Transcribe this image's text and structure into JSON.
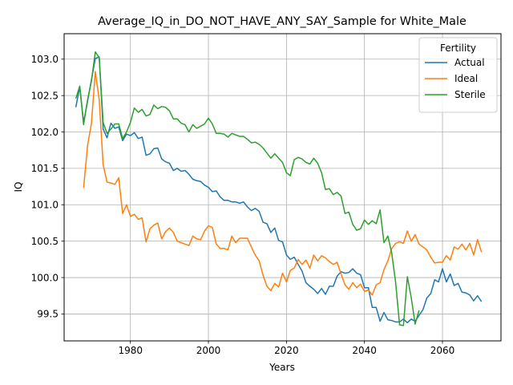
{
  "chart_data": {
    "type": "line",
    "title": "Average_IQ_in_DO_NOT_HAVE_ANY_SAY_Sample for White_Male",
    "xlabel": "Years",
    "ylabel": "IQ",
    "xlim": [
      1963,
      2075
    ],
    "ylim": [
      99.13,
      103.35
    ],
    "xticks": [
      1980,
      2000,
      2020,
      2040,
      2060
    ],
    "xtick_labels": [
      "1980",
      "2000",
      "2020",
      "2040",
      "2060"
    ],
    "yticks": [
      99.5,
      100.0,
      100.5,
      101.0,
      101.5,
      102.0,
      102.5,
      103.0
    ],
    "ytick_labels": [
      "99.5",
      "100.0",
      "100.5",
      "101.0",
      "101.5",
      "102.0",
      "102.5",
      "103.0"
    ],
    "grid": true,
    "legend": {
      "title": "Fertility",
      "placement": "top-right"
    },
    "series": [
      {
        "name": "Actual",
        "color": "#1f77b4",
        "x": [
          1966,
          1967,
          1968,
          1969,
          1970,
          1971,
          1972,
          1973,
          1974,
          1975,
          1976,
          1977,
          1978,
          1979,
          1980,
          1981,
          1982,
          1983,
          1984,
          1985,
          1986,
          1987,
          1988,
          1989,
          1990,
          1991,
          1992,
          1993,
          1994,
          1995,
          1996,
          1997,
          1998,
          1999,
          2000,
          2001,
          2002,
          2003,
          2004,
          2005,
          2006,
          2007,
          2008,
          2009,
          2010,
          2011,
          2012,
          2013,
          2014,
          2015,
          2016,
          2017,
          2018,
          2019,
          2020,
          2021,
          2022,
          2023,
          2024,
          2025,
          2026,
          2027,
          2028,
          2029,
          2030,
          2031,
          2032,
          2033,
          2034,
          2035,
          2036,
          2037,
          2038,
          2039,
          2040,
          2041,
          2042,
          2043,
          2044,
          2045,
          2046,
          2047,
          2048,
          2049,
          2050,
          2051,
          2052,
          2053,
          2054,
          2055,
          2056,
          2057,
          2058,
          2059,
          2060,
          2061,
          2062,
          2063,
          2064,
          2065,
          2066,
          2067,
          2068,
          2069,
          2070
        ],
        "y": [
          102.34,
          102.62,
          102.13,
          102.42,
          102.72,
          103.01,
          103.03,
          102.04,
          101.92,
          102.12,
          102.05,
          102.07,
          101.88,
          101.97,
          101.95,
          101.99,
          101.91,
          101.93,
          101.68,
          101.7,
          101.77,
          101.78,
          101.63,
          101.59,
          101.57,
          101.47,
          101.5,
          101.46,
          101.47,
          101.42,
          101.35,
          101.33,
          101.32,
          101.27,
          101.24,
          101.18,
          101.19,
          101.11,
          101.06,
          101.06,
          101.04,
          101.04,
          101.02,
          101.04,
          100.97,
          100.92,
          100.95,
          100.91,
          100.76,
          100.74,
          100.62,
          100.68,
          100.51,
          100.49,
          100.31,
          100.25,
          100.28,
          100.18,
          100.09,
          99.93,
          99.88,
          99.84,
          99.78,
          99.85,
          99.77,
          99.88,
          99.88,
          100.02,
          100.08,
          100.06,
          100.07,
          100.12,
          100.06,
          100.04,
          99.86,
          99.86,
          99.59,
          99.59,
          99.4,
          99.52,
          99.42,
          99.41,
          99.39,
          99.39,
          99.43,
          99.38,
          99.43,
          99.4,
          99.48,
          99.56,
          99.72,
          99.78,
          99.97,
          99.94,
          100.12,
          99.94,
          100.05,
          99.89,
          99.92,
          99.8,
          99.79,
          99.76,
          99.68,
          99.75,
          99.67
        ]
      },
      {
        "name": "Ideal",
        "color": "#ff7f0e",
        "x": [
          1968,
          1969,
          1970,
          1971,
          1972,
          1973,
          1974,
          1975,
          1976,
          1977,
          1978,
          1979,
          1980,
          1981,
          1982,
          1983,
          1984,
          1985,
          1986,
          1987,
          1988,
          1989,
          1990,
          1991,
          1992,
          1993,
          1994,
          1995,
          1996,
          1997,
          1998,
          1999,
          2000,
          2001,
          2002,
          2003,
          2004,
          2005,
          2006,
          2007,
          2008,
          2009,
          2010,
          2011,
          2012,
          2013,
          2014,
          2015,
          2016,
          2017,
          2018,
          2019,
          2020,
          2021,
          2022,
          2023,
          2024,
          2025,
          2026,
          2027,
          2028,
          2029,
          2030,
          2031,
          2032,
          2033,
          2034,
          2035,
          2036,
          2037,
          2038,
          2039,
          2040,
          2041,
          2042,
          2043,
          2044,
          2045,
          2046,
          2047,
          2048,
          2049,
          2050,
          2051,
          2052,
          2053,
          2054,
          2055,
          2056,
          2057,
          2058,
          2059,
          2060,
          2061,
          2062,
          2063,
          2064,
          2065,
          2066,
          2067,
          2068,
          2069,
          2070
        ],
        "y": [
          101.23,
          101.81,
          102.12,
          102.83,
          102.44,
          101.55,
          101.31,
          101.3,
          101.28,
          101.37,
          100.88,
          101.0,
          100.84,
          100.87,
          100.8,
          100.82,
          100.49,
          100.67,
          100.72,
          100.75,
          100.53,
          100.63,
          100.68,
          100.62,
          100.5,
          100.48,
          100.46,
          100.44,
          100.57,
          100.53,
          100.52,
          100.64,
          100.71,
          100.69,
          100.46,
          100.4,
          100.4,
          100.38,
          100.57,
          100.48,
          100.54,
          100.54,
          100.54,
          100.42,
          100.31,
          100.23,
          100.03,
          99.88,
          99.82,
          99.92,
          99.87,
          100.06,
          99.94,
          100.1,
          100.13,
          100.25,
          100.18,
          100.24,
          100.13,
          100.31,
          100.23,
          100.3,
          100.27,
          100.22,
          100.18,
          100.21,
          100.05,
          99.9,
          99.84,
          99.93,
          99.86,
          99.91,
          99.81,
          99.83,
          99.76,
          99.9,
          99.93,
          100.11,
          100.23,
          100.4,
          100.47,
          100.49,
          100.47,
          100.64,
          100.5,
          100.59,
          100.46,
          100.42,
          100.38,
          100.28,
          100.2,
          100.21,
          100.21,
          100.3,
          100.24,
          100.42,
          100.39,
          100.46,
          100.38,
          100.47,
          100.31,
          100.52,
          100.35
        ]
      },
      {
        "name": "Sterile",
        "color": "#2ca02c",
        "x": [
          1966,
          1967,
          1968,
          1969,
          1970,
          1971,
          1972,
          1973,
          1974,
          1975,
          1976,
          1977,
          1978,
          1979,
          1980,
          1981,
          1982,
          1983,
          1984,
          1985,
          1986,
          1987,
          1988,
          1989,
          1990,
          1991,
          1992,
          1993,
          1994,
          1995,
          1996,
          1997,
          1998,
          1999,
          2000,
          2001,
          2002,
          2003,
          2004,
          2005,
          2006,
          2007,
          2008,
          2009,
          2010,
          2011,
          2012,
          2013,
          2014,
          2015,
          2016,
          2017,
          2018,
          2019,
          2020,
          2021,
          2022,
          2023,
          2024,
          2025,
          2026,
          2027,
          2028,
          2029,
          2030,
          2031,
          2032,
          2033,
          2034,
          2035,
          2036,
          2037,
          2038,
          2039,
          2040,
          2041,
          2042,
          2043,
          2044,
          2045,
          2046,
          2047,
          2048,
          2049,
          2050,
          2051,
          2052,
          2053,
          2054
        ],
        "y": [
          102.46,
          102.63,
          102.1,
          102.44,
          102.7,
          103.1,
          103.02,
          102.13,
          101.98,
          102.04,
          102.11,
          102.11,
          101.91,
          102.0,
          102.13,
          102.33,
          102.27,
          102.31,
          102.22,
          102.24,
          102.37,
          102.32,
          102.35,
          102.34,
          102.29,
          102.18,
          102.18,
          102.12,
          102.1,
          102.0,
          102.1,
          102.05,
          102.08,
          102.11,
          102.19,
          102.11,
          101.98,
          101.98,
          101.97,
          101.93,
          101.98,
          101.96,
          101.94,
          101.94,
          101.9,
          101.85,
          101.86,
          101.83,
          101.78,
          101.71,
          101.64,
          101.7,
          101.64,
          101.58,
          101.44,
          101.4,
          101.62,
          101.65,
          101.63,
          101.58,
          101.56,
          101.64,
          101.57,
          101.44,
          101.21,
          101.22,
          101.14,
          101.17,
          101.12,
          100.88,
          100.9,
          100.73,
          100.65,
          100.67,
          100.79,
          100.73,
          100.78,
          100.74,
          100.93,
          100.48,
          100.57,
          100.33,
          99.93,
          99.35,
          99.34,
          100.01,
          99.72,
          99.36,
          99.55
        ]
      }
    ]
  }
}
